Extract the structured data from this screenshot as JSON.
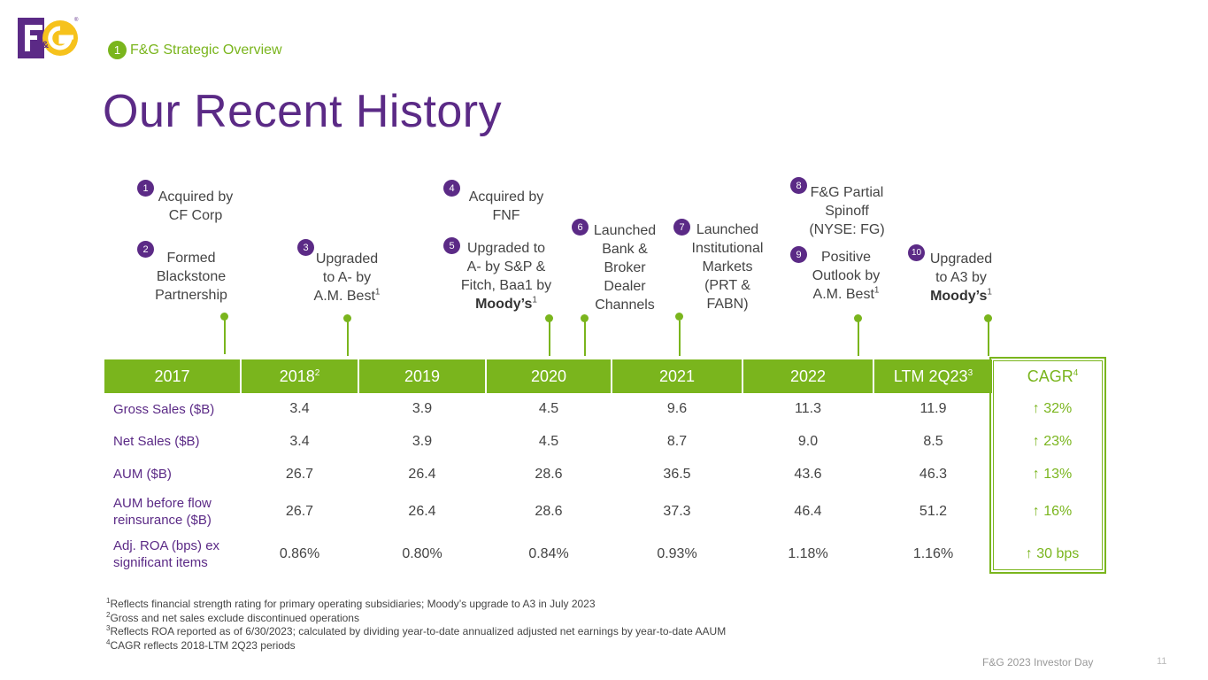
{
  "logo": {
    "text": "F&G",
    "registered": "®"
  },
  "section": {
    "number": "1",
    "label": "F&G Strategic Overview"
  },
  "title": "Our Recent History",
  "events": [
    {
      "num": "1",
      "lines": [
        "Acquired by",
        "CF Corp"
      ]
    },
    {
      "num": "2",
      "lines": [
        "Formed",
        "Blackstone",
        "Partnership"
      ]
    },
    {
      "num": "3",
      "lines": [
        "Upgraded",
        "to A- by"
      ],
      "last": "A.M. Best",
      "sup": "1"
    },
    {
      "num": "4",
      "lines": [
        "Acquired by",
        "FNF"
      ]
    },
    {
      "num": "5",
      "lines": [
        "Upgraded to",
        "A- by S&P &",
        "Fitch, Baa1 by"
      ],
      "last_bold": "Moody’s",
      "sup": "1"
    },
    {
      "num": "6",
      "lines": [
        "Launched",
        "Bank &",
        "Broker",
        "Dealer",
        "Channels"
      ]
    },
    {
      "num": "7",
      "lines": [
        "Launched",
        "Institutional",
        "Markets",
        "(PRT &",
        "FABN)"
      ]
    },
    {
      "num": "8",
      "lines": [
        "F&G Partial",
        "Spinoff",
        "(NYSE: FG)"
      ]
    },
    {
      "num": "9",
      "lines": [
        "Positive",
        "Outlook by"
      ],
      "last": "A.M. Best",
      "sup": "1"
    },
    {
      "num": "10",
      "lines": [
        "Upgraded",
        "to A3 by"
      ],
      "last_bold": "Moody’s",
      "sup": "1"
    }
  ],
  "table": {
    "headers": [
      {
        "text": "2017",
        "sup": ""
      },
      {
        "text": "2018",
        "sup": "2"
      },
      {
        "text": "2019",
        "sup": ""
      },
      {
        "text": "2020",
        "sup": ""
      },
      {
        "text": "2021",
        "sup": ""
      },
      {
        "text": "2022",
        "sup": ""
      },
      {
        "text": "LTM 2Q23",
        "sup": "3"
      },
      {
        "text": "CAGR",
        "sup": "4"
      }
    ],
    "rows": [
      {
        "label": "Gross Sales ($B)",
        "values": [
          "3.4",
          "3.9",
          "4.5",
          "9.6",
          "11.3",
          "11.9"
        ],
        "cagr": "↑ 32%"
      },
      {
        "label": "Net Sales ($B)",
        "values": [
          "3.4",
          "3.9",
          "4.5",
          "8.7",
          "9.0",
          "8.5"
        ],
        "cagr": "↑ 23%"
      },
      {
        "label": "AUM ($B)",
        "values": [
          "26.7",
          "26.4",
          "28.6",
          "36.5",
          "43.6",
          "46.3"
        ],
        "cagr": "↑ 13%"
      },
      {
        "label": "AUM before flow reinsurance ($B)",
        "values": [
          "26.7",
          "26.4",
          "28.6",
          "37.3",
          "46.4",
          "51.2"
        ],
        "cagr": "↑ 16%"
      },
      {
        "label": "Adj. ROA (bps) ex significant items",
        "values": [
          "0.86%",
          "0.80%",
          "0.84%",
          "0.93%",
          "1.18%",
          "1.16%"
        ],
        "cagr": "↑ 30 bps"
      }
    ]
  },
  "footnotes": [
    {
      "sup": "1",
      "text": "Reflects financial strength rating for primary operating subsidiaries; Moody’s upgrade to A3 in July 2023"
    },
    {
      "sup": "2",
      "text": "Gross and net sales exclude discontinued operations"
    },
    {
      "sup": "3",
      "text": "Reflects ROA reported as of 6/30/2023; calculated by dividing year-to-date annualized adjusted net earnings by year-to-date AAUM"
    },
    {
      "sup": "4",
      "text": "CAGR reflects 2018-LTM 2Q23 periods"
    }
  ],
  "footer": {
    "label": "F&G 2023 Investor Day",
    "page": "11"
  },
  "colors": {
    "purple": "#5b2a86",
    "green": "#7ab51d",
    "yellow": "#f6c21c"
  }
}
